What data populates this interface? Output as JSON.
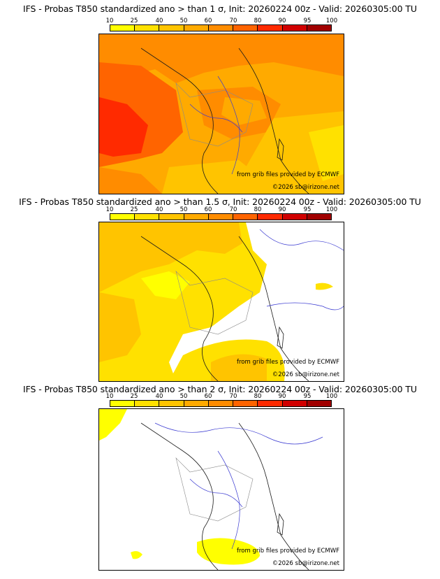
{
  "panels": [
    {
      "title": "IFS - Probas T850  standardized ano > than 1 σ, Init: 20260224 00z - Valid: 20260305:00 TU",
      "source": "from grib files provided by ECMWF",
      "copyright": "©2026 sb@irizone.net"
    },
    {
      "title": "IFS - Probas T850  standardized ano > than 1.5 σ, Init: 20260224 00z - Valid: 20260305:00 TU",
      "source": "from grib files provided by ECMWF",
      "copyright": "©2026 sb@irizone.net"
    },
    {
      "title": "IFS - Probas T850  standardized ano > than 2 σ, Init: 20260224 00z - Valid: 20260305:00 TU",
      "source": "from grib files provided by ECMWF",
      "copyright": "©2026 sb@irizone.net"
    }
  ],
  "legend": {
    "ticks": [
      "10",
      "25",
      "40",
      "50",
      "60",
      "70",
      "80",
      "90",
      "95",
      "100"
    ],
    "colors": [
      "#ffff00",
      "#ffe100",
      "#ffc400",
      "#ffaa00",
      "#ff8c00",
      "#ff6400",
      "#ff2a00",
      "#d10000",
      "#a10000",
      "#600000"
    ]
  }
}
